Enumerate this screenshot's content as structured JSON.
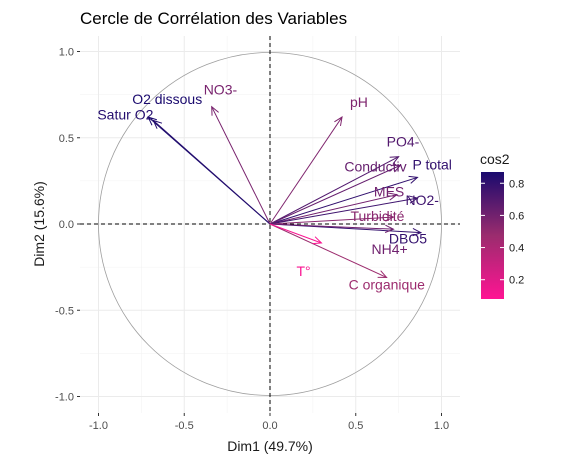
{
  "chart_data": {
    "type": "scatter",
    "subtype": "pca-variable-correlation-circle",
    "title": "Cercle de Corrélation des Variables",
    "xlabel": "Dim1 (49.7%)",
    "ylabel": "Dim2 (15.6%)",
    "xlim": [
      -1.05,
      1.05
    ],
    "ylim": [
      -1.05,
      1.05
    ],
    "xticks": [
      "-1.0",
      "-0.5",
      "0.0",
      "0.5",
      "1.0"
    ],
    "yticks": [
      "1.0",
      "0.5",
      "0.0",
      "-0.5",
      "-1.0"
    ],
    "tick_values": [
      -1.0,
      -0.5,
      0.0,
      0.5,
      1.0
    ],
    "grid": true,
    "unit_circle": true,
    "legend": {
      "title": "cos2",
      "position": "right",
      "ticks": [
        "0.8",
        "0.6",
        "0.4",
        "0.2"
      ],
      "tick_values": [
        0.8,
        0.6,
        0.4,
        0.2
      ],
      "range": [
        0.08,
        0.87
      ],
      "color_low": "#ff1493",
      "color_mid": "#9b2c6e",
      "color_high": "#1a0a6e"
    },
    "variables": [
      {
        "name": "O2 dissous",
        "x": -0.71,
        "y": 0.62,
        "cos2": 0.87
      },
      {
        "name": "Satur O2",
        "x": -0.68,
        "y": 0.6,
        "cos2": 0.84
      },
      {
        "name": "NO3-",
        "x": -0.34,
        "y": 0.68,
        "cos2": 0.58
      },
      {
        "name": "pH",
        "x": 0.42,
        "y": 0.62,
        "cos2": 0.56
      },
      {
        "name": "PO4-",
        "x": 0.75,
        "y": 0.39,
        "cos2": 0.7
      },
      {
        "name": "P total",
        "x": 0.86,
        "y": 0.27,
        "cos2": 0.8
      },
      {
        "name": "Conductiv",
        "x": 0.76,
        "y": 0.34,
        "cos2": 0.64
      },
      {
        "name": "MES",
        "x": 0.74,
        "y": 0.17,
        "cos2": 0.6
      },
      {
        "name": "NO2-",
        "x": 0.86,
        "y": 0.15,
        "cos2": 0.76
      },
      {
        "name": "Turbidité",
        "x": 0.72,
        "y": 0.04,
        "cos2": 0.53
      },
      {
        "name": "DBO5",
        "x": 0.88,
        "y": -0.05,
        "cos2": 0.79
      },
      {
        "name": "NH4+",
        "x": 0.72,
        "y": -0.03,
        "cos2": 0.61
      },
      {
        "name": "C organique",
        "x": 0.68,
        "y": -0.31,
        "cos2": 0.47
      },
      {
        "name": "T°",
        "x": 0.3,
        "y": -0.11,
        "cos2": 0.1
      }
    ]
  }
}
